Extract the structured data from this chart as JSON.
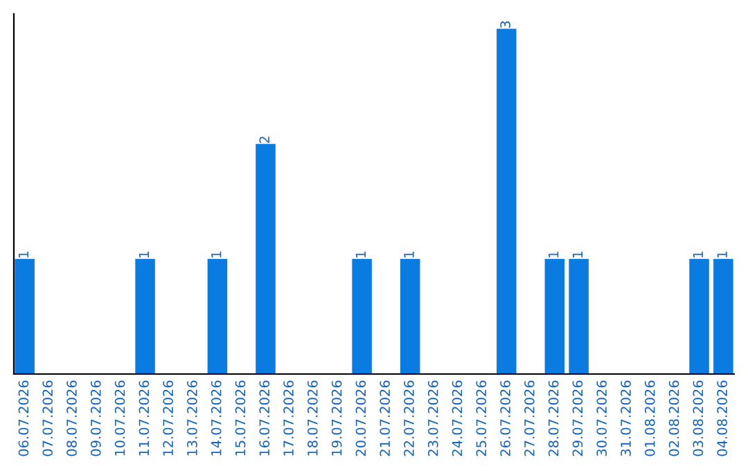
{
  "chart_data": {
    "type": "bar",
    "categories": [
      "06.07.2026",
      "07.07.2026",
      "08.07.2026",
      "09.07.2026",
      "10.07.2026",
      "11.07.2026",
      "12.07.2026",
      "13.07.2026",
      "14.07.2026",
      "15.07.2026",
      "16.07.2026",
      "17.07.2026",
      "18.07.2026",
      "19.07.2026",
      "20.07.2026",
      "21.07.2026",
      "22.07.2026",
      "23.07.2026",
      "24.07.2026",
      "25.07.2026",
      "26.07.2026",
      "27.07.2026",
      "28.07.2026",
      "29.07.2026",
      "30.07.2026",
      "31.07.2026",
      "01.08.2026",
      "02.08.2026",
      "03.08.2026",
      "04.08.2026"
    ],
    "values": [
      1,
      0,
      0,
      0,
      0,
      1,
      0,
      0,
      1,
      0,
      2,
      0,
      0,
      0,
      1,
      0,
      1,
      0,
      0,
      0,
      3,
      0,
      1,
      1,
      0,
      0,
      0,
      0,
      1,
      1
    ],
    "value_labels": [
      "1",
      null,
      null,
      null,
      null,
      "1",
      null,
      null,
      "1",
      null,
      "2",
      null,
      null,
      null,
      "1",
      null,
      "1",
      null,
      null,
      null,
      "3",
      null,
      "1",
      "1",
      null,
      null,
      null,
      null,
      "1",
      "1"
    ],
    "color": "#0a7be0",
    "ylim": [
      0,
      3.13
    ],
    "tick_labels": "x",
    "grid": false,
    "legend": false
  }
}
